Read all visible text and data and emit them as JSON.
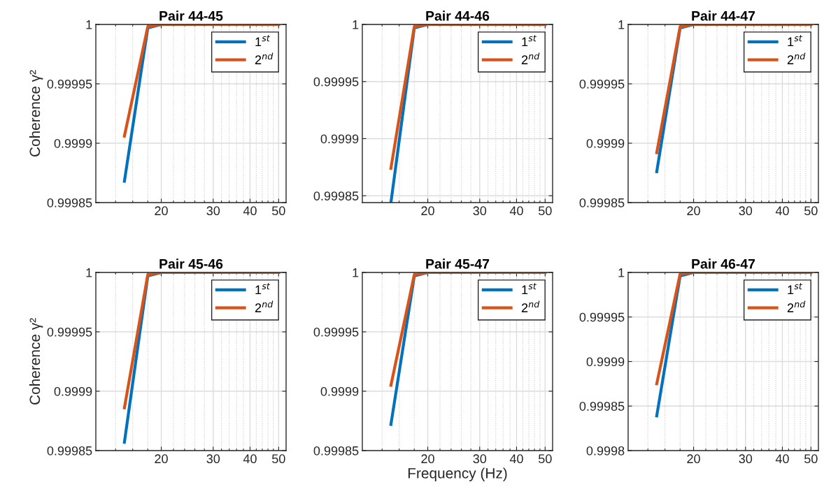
{
  "chart_data": [
    {
      "type": "line",
      "title": "Pair 44-45",
      "ylabel": "Coherence γ²",
      "xlim": [
        12,
        53
      ],
      "ylim": [
        0.99985,
        1
      ],
      "log": "x",
      "grid": true,
      "legend": "top right",
      "xticks": [
        {
          "value": 14,
          "label": null
        },
        {
          "value": 16,
          "label": null
        },
        {
          "value": 18,
          "label": null
        },
        20,
        {
          "value": 22,
          "label": null
        },
        {
          "value": 24,
          "label": null
        },
        {
          "value": 26,
          "label": null
        },
        {
          "value": 28,
          "label": null
        },
        30,
        {
          "value": 32,
          "label": null
        },
        {
          "value": 34,
          "label": null
        },
        {
          "value": 36,
          "label": null
        },
        {
          "value": 38,
          "label": null
        },
        40,
        {
          "value": 42,
          "label": null
        },
        {
          "value": 44,
          "label": null
        },
        {
          "value": 46,
          "label": null
        },
        {
          "value": 48,
          "label": null
        },
        50
      ],
      "yticks": [
        0.99985,
        0.9999,
        0.99995,
        1
      ],
      "series": [
        {
          "name": "1$^{st}$",
          "color": "#0072bd",
          "x": [
            15,
            18,
            20,
            50
          ],
          "values": [
            0.999868,
            0.999997,
            1,
            1
          ]
        },
        {
          "name": "2$^{nd}$",
          "color": "#d95319",
          "x": [
            15,
            18,
            20,
            50
          ],
          "values": [
            0.999906,
            0.999998,
            1,
            1
          ]
        }
      ]
    },
    {
      "type": "line",
      "title": "Pair 44-46",
      "xlim": [
        12,
        53
      ],
      "ylim": [
        0.999844,
        1
      ],
      "log": "x",
      "grid": true,
      "legend": "top right",
      "xticks": [
        {
          "value": 14,
          "label": null
        },
        {
          "value": 16,
          "label": null
        },
        {
          "value": 18,
          "label": null
        },
        20,
        {
          "value": 22,
          "label": null
        },
        {
          "value": 24,
          "label": null
        },
        {
          "value": 26,
          "label": null
        },
        {
          "value": 28,
          "label": null
        },
        30,
        {
          "value": 32,
          "label": null
        },
        {
          "value": 34,
          "label": null
        },
        {
          "value": 36,
          "label": null
        },
        {
          "value": 38,
          "label": null
        },
        40,
        {
          "value": 42,
          "label": null
        },
        {
          "value": 44,
          "label": null
        },
        {
          "value": 46,
          "label": null
        },
        {
          "value": 48,
          "label": null
        },
        50
      ],
      "yticks": [
        0.99985,
        0.9999,
        0.99995,
        1
      ],
      "series": [
        {
          "name": "1$^{st}$",
          "color": "#0072bd",
          "x": [
            15,
            18,
            20,
            50
          ],
          "values": [
            0.999844,
            0.999997,
            1,
            1
          ]
        },
        {
          "name": "2$^{nd}$",
          "color": "#d95319",
          "x": [
            15,
            18,
            20,
            50
          ],
          "values": [
            0.999874,
            0.999998,
            1,
            1
          ]
        }
      ]
    },
    {
      "type": "line",
      "title": "Pair 44-47",
      "xlim": [
        12,
        53
      ],
      "ylim": [
        0.99985,
        1
      ],
      "log": "x",
      "grid": true,
      "legend": "top right",
      "xticks": [
        {
          "value": 14,
          "label": null
        },
        {
          "value": 16,
          "label": null
        },
        {
          "value": 18,
          "label": null
        },
        20,
        {
          "value": 22,
          "label": null
        },
        {
          "value": 24,
          "label": null
        },
        {
          "value": 26,
          "label": null
        },
        {
          "value": 28,
          "label": null
        },
        30,
        {
          "value": 32,
          "label": null
        },
        {
          "value": 34,
          "label": null
        },
        {
          "value": 36,
          "label": null
        },
        {
          "value": 38,
          "label": null
        },
        40,
        {
          "value": 42,
          "label": null
        },
        {
          "value": 44,
          "label": null
        },
        {
          "value": 46,
          "label": null
        },
        {
          "value": 48,
          "label": null
        },
        50
      ],
      "yticks": [
        0.99985,
        0.9999,
        0.99995,
        1
      ],
      "series": [
        {
          "name": "1$^{st}$",
          "color": "#0072bd",
          "x": [
            15,
            18,
            20,
            50
          ],
          "values": [
            0.999876,
            0.999997,
            1,
            1
          ]
        },
        {
          "name": "2$^{nd}$",
          "color": "#d95319",
          "x": [
            15,
            18,
            20,
            50
          ],
          "values": [
            0.999892,
            0.999998,
            1,
            1
          ]
        }
      ]
    },
    {
      "type": "line",
      "title": "Pair 45-46",
      "ylabel": "Coherence γ²",
      "xlim": [
        12,
        53
      ],
      "ylim": [
        0.99985,
        1
      ],
      "log": "x",
      "grid": true,
      "legend": "top right",
      "xticks": [
        {
          "value": 14,
          "label": null
        },
        {
          "value": 16,
          "label": null
        },
        {
          "value": 18,
          "label": null
        },
        20,
        {
          "value": 22,
          "label": null
        },
        {
          "value": 24,
          "label": null
        },
        {
          "value": 26,
          "label": null
        },
        {
          "value": 28,
          "label": null
        },
        30,
        {
          "value": 32,
          "label": null
        },
        {
          "value": 34,
          "label": null
        },
        {
          "value": 36,
          "label": null
        },
        {
          "value": 38,
          "label": null
        },
        40,
        {
          "value": 42,
          "label": null
        },
        {
          "value": 44,
          "label": null
        },
        {
          "value": 46,
          "label": null
        },
        {
          "value": 48,
          "label": null
        },
        50
      ],
      "yticks": [
        0.99985,
        0.9999,
        0.99995,
        1
      ],
      "series": [
        {
          "name": "1$^{st}$",
          "color": "#0072bd",
          "x": [
            15,
            18,
            20,
            50
          ],
          "values": [
            0.999857,
            0.999997,
            1,
            1
          ]
        },
        {
          "name": "2$^{nd}$",
          "color": "#d95319",
          "x": [
            15,
            18,
            20,
            50
          ],
          "values": [
            0.999886,
            0.999998,
            1,
            1
          ]
        }
      ]
    },
    {
      "type": "line",
      "title": "Pair 45-47",
      "xlabel": "Frequency (Hz)",
      "xlim": [
        12,
        53
      ],
      "ylim": [
        0.99985,
        1
      ],
      "log": "x",
      "grid": true,
      "legend": "top right",
      "xticks": [
        {
          "value": 14,
          "label": null
        },
        {
          "value": 16,
          "label": null
        },
        {
          "value": 18,
          "label": null
        },
        20,
        {
          "value": 22,
          "label": null
        },
        {
          "value": 24,
          "label": null
        },
        {
          "value": 26,
          "label": null
        },
        {
          "value": 28,
          "label": null
        },
        30,
        {
          "value": 32,
          "label": null
        },
        {
          "value": 34,
          "label": null
        },
        {
          "value": 36,
          "label": null
        },
        {
          "value": 38,
          "label": null
        },
        40,
        {
          "value": 42,
          "label": null
        },
        {
          "value": 44,
          "label": null
        },
        {
          "value": 46,
          "label": null
        },
        {
          "value": 48,
          "label": null
        },
        50
      ],
      "yticks": [
        0.99985,
        0.9999,
        0.99995,
        1
      ],
      "series": [
        {
          "name": "1$^{st}$",
          "color": "#0072bd",
          "x": [
            15,
            18,
            20,
            50
          ],
          "values": [
            0.999872,
            0.999997,
            1,
            1
          ]
        },
        {
          "name": "2$^{nd}$",
          "color": "#d95319",
          "x": [
            15,
            18,
            20,
            50
          ],
          "values": [
            0.999905,
            0.999998,
            1,
            1
          ]
        }
      ]
    },
    {
      "type": "line",
      "title": "Pair 46-47",
      "xlim": [
        12,
        53
      ],
      "ylim": [
        0.9998,
        1
      ],
      "log": "x",
      "grid": true,
      "legend": "top right",
      "xticks": [
        {
          "value": 14,
          "label": null
        },
        {
          "value": 16,
          "label": null
        },
        {
          "value": 18,
          "label": null
        },
        20,
        {
          "value": 22,
          "label": null
        },
        {
          "value": 24,
          "label": null
        },
        {
          "value": 26,
          "label": null
        },
        {
          "value": 28,
          "label": null
        },
        30,
        {
          "value": 32,
          "label": null
        },
        {
          "value": 34,
          "label": null
        },
        {
          "value": 36,
          "label": null
        },
        {
          "value": 38,
          "label": null
        },
        40,
        {
          "value": 42,
          "label": null
        },
        {
          "value": 44,
          "label": null
        },
        {
          "value": 46,
          "label": null
        },
        {
          "value": 48,
          "label": null
        },
        50
      ],
      "yticks": [
        0.9998,
        0.99985,
        0.9999,
        0.99995,
        1
      ],
      "series": [
        {
          "name": "1$^{st}$",
          "color": "#0072bd",
          "x": [
            15,
            18,
            20,
            50
          ],
          "values": [
            0.999839,
            0.999996,
            1,
            1
          ]
        },
        {
          "name": "2$^{nd}$",
          "color": "#d95319",
          "x": [
            15,
            18,
            20,
            50
          ],
          "values": [
            0.999875,
            0.999998,
            1,
            1
          ]
        }
      ]
    }
  ]
}
